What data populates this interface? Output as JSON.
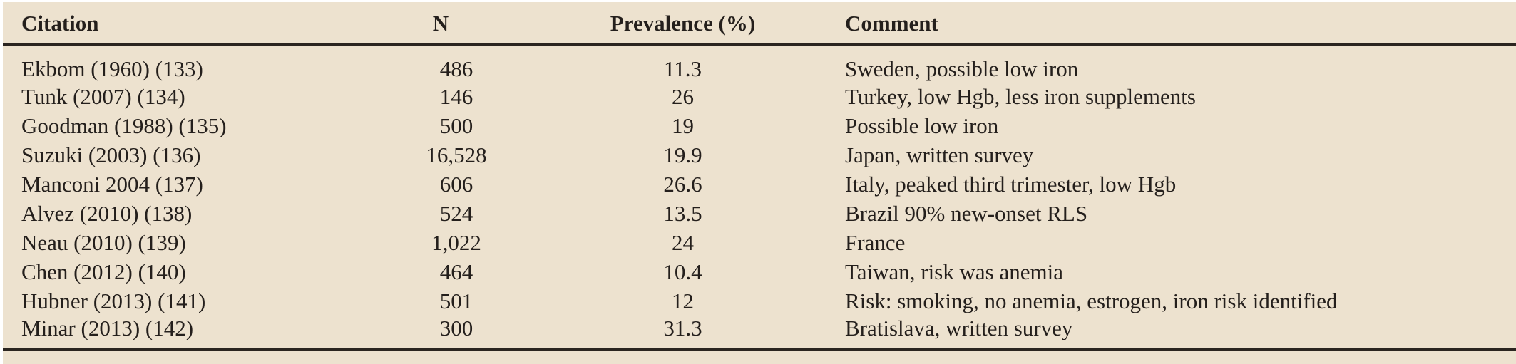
{
  "colors": {
    "page_background": "#ffffff",
    "table_background": "#ede2cf",
    "text": "#241f1c",
    "rule": "#2b2520"
  },
  "table": {
    "columns": [
      {
        "key": "citation",
        "label": "Citation"
      },
      {
        "key": "n",
        "label": "N"
      },
      {
        "key": "prevalence",
        "label": "Prevalence (%)"
      },
      {
        "key": "comment",
        "label": "Comment"
      }
    ],
    "rows": [
      {
        "citation": "Ekbom (1960) (133)",
        "n": "486",
        "prevalence": "11.3",
        "comment": "Sweden, possible low iron"
      },
      {
        "citation": "Tunk (2007) (134)",
        "n": "146",
        "prevalence": "26",
        "comment": "Turkey, low Hgb, less iron supplements"
      },
      {
        "citation": "Goodman (1988) (135)",
        "n": "500",
        "prevalence": "19",
        "comment": "Possible low iron"
      },
      {
        "citation": "Suzuki (2003) (136)",
        "n": "16,528",
        "prevalence": "19.9",
        "comment": "Japan, written survey"
      },
      {
        "citation": "Manconi 2004 (137)",
        "n": "606",
        "prevalence": "26.6",
        "comment": "Italy, peaked third trimester, low Hgb"
      },
      {
        "citation": "Alvez (2010) (138)",
        "n": "524",
        "prevalence": "13.5",
        "comment": "Brazil 90% new-onset RLS"
      },
      {
        "citation": "Neau (2010) (139)",
        "n": "1,022",
        "prevalence": "24",
        "comment": "France"
      },
      {
        "citation": "Chen (2012) (140)",
        "n": "464",
        "prevalence": "10.4",
        "comment": "Taiwan, risk was anemia"
      },
      {
        "citation": "Hubner (2013) (141)",
        "n": "501",
        "prevalence": "12",
        "comment": "Risk: smoking, no anemia, estrogen, iron risk identified"
      },
      {
        "citation": "Minar (2013) (142)",
        "n": "300",
        "prevalence": "31.3",
        "comment": "Bratislava, written survey"
      }
    ]
  }
}
